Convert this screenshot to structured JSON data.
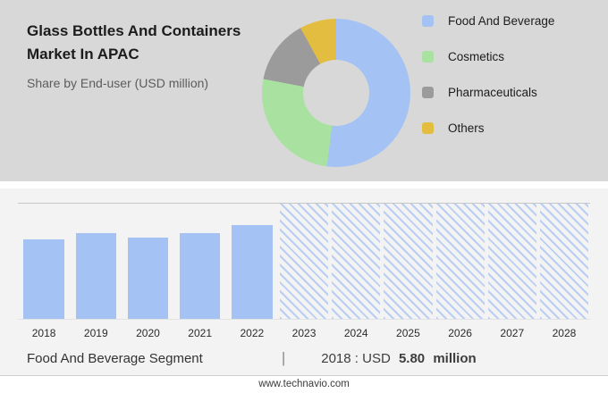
{
  "header": {
    "title_line1": "Glass Bottles And Containers",
    "title_line2": "Market In APAC",
    "subtitle": "Share by End-user (USD million)"
  },
  "chart_data": [
    {
      "type": "pie",
      "donut": true,
      "title": "Share by End-user (USD million)",
      "legend_position": "right",
      "segments": [
        {
          "label": "Food And Beverage",
          "value": 52,
          "color": "#a4c2f4"
        },
        {
          "label": "Cosmetics",
          "value": 26,
          "color": "#a9e2a0"
        },
        {
          "label": "Pharmaceuticals",
          "value": 14,
          "color": "#9b9b9b"
        },
        {
          "label": "Others",
          "value": 8,
          "color": "#e2bd3f"
        }
      ]
    },
    {
      "type": "bar",
      "categories": [
        "2018",
        "2019",
        "2020",
        "2021",
        "2022",
        "2023",
        "2024",
        "2025",
        "2026",
        "2027",
        "2028"
      ],
      "values": [
        5.8,
        6.25,
        5.9,
        6.25,
        6.85,
        null,
        null,
        null,
        null,
        null,
        null
      ],
      "forecast_categories": [
        "2023",
        "2024",
        "2025",
        "2026",
        "2027",
        "2028"
      ],
      "bar_color": "#a4c2f4",
      "ylim": [
        0,
        8.4
      ],
      "grid": false,
      "xlabel": "",
      "ylabel": ""
    }
  ],
  "caption": {
    "segment_label": "Food And Beverage Segment",
    "separator": "|",
    "year_label": "2018 : USD",
    "value": "5.80",
    "unit": "million"
  },
  "footer": {
    "website": "www.technavio.com"
  }
}
